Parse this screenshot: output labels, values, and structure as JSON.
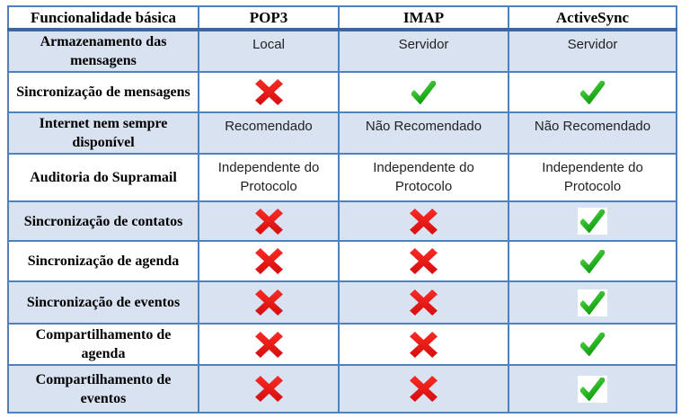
{
  "colors": {
    "table_border": "#4F81BD",
    "header_rule": "#3B67A0",
    "shaded_row_bg": "#D8E2F1",
    "white_row_bg": "#FFFFFF",
    "cross_red": "#E31414",
    "check_green": "#1FA81F",
    "label_text": "#000000",
    "value_text": "#222222",
    "page_bg": "#FFFFFF"
  },
  "icons": {
    "cross": "red-x-icon",
    "check": "green-check-icon"
  },
  "table": {
    "headers": [
      "Funcionalidade básica",
      "POP3",
      "IMAP",
      "ActiveSync"
    ],
    "rows": [
      {
        "label": "Armazenamento das mensagens",
        "shaded": true,
        "cells": [
          "Local",
          "Servidor",
          "Servidor"
        ]
      },
      {
        "label": "Sincronização de mensagens",
        "shaded": false,
        "cells": [
          {
            "icon": "cross"
          },
          {
            "icon": "check"
          },
          {
            "icon": "check"
          }
        ]
      },
      {
        "label": "Internet nem sempre disponível",
        "shaded": true,
        "cells": [
          "Recomendado",
          "Não Recomendado",
          "Não Recomendado"
        ]
      },
      {
        "label": "Auditoria do Supramail",
        "shaded": false,
        "cells": [
          "Independente do Protocolo",
          "Independente do Protocolo",
          "Independente do Protocolo"
        ]
      },
      {
        "label": "Sincronização de contatos",
        "shaded": true,
        "cells": [
          {
            "icon": "cross"
          },
          {
            "icon": "cross"
          },
          {
            "icon": "check",
            "boxed": true
          }
        ]
      },
      {
        "label": "Sincronização de agenda",
        "shaded": false,
        "cells": [
          {
            "icon": "cross"
          },
          {
            "icon": "cross"
          },
          {
            "icon": "check"
          }
        ]
      },
      {
        "label": "Sincronização de eventos",
        "shaded": true,
        "cells": [
          {
            "icon": "cross"
          },
          {
            "icon": "cross"
          },
          {
            "icon": "check",
            "boxed": true
          }
        ]
      },
      {
        "label": "Compartilhamento de agenda",
        "shaded": false,
        "cells": [
          {
            "icon": "cross"
          },
          {
            "icon": "cross"
          },
          {
            "icon": "check"
          }
        ]
      },
      {
        "label": "Compartilhamento de eventos",
        "shaded": true,
        "cells": [
          {
            "icon": "cross"
          },
          {
            "icon": "cross"
          },
          {
            "icon": "check",
            "boxed": true
          }
        ]
      }
    ]
  }
}
